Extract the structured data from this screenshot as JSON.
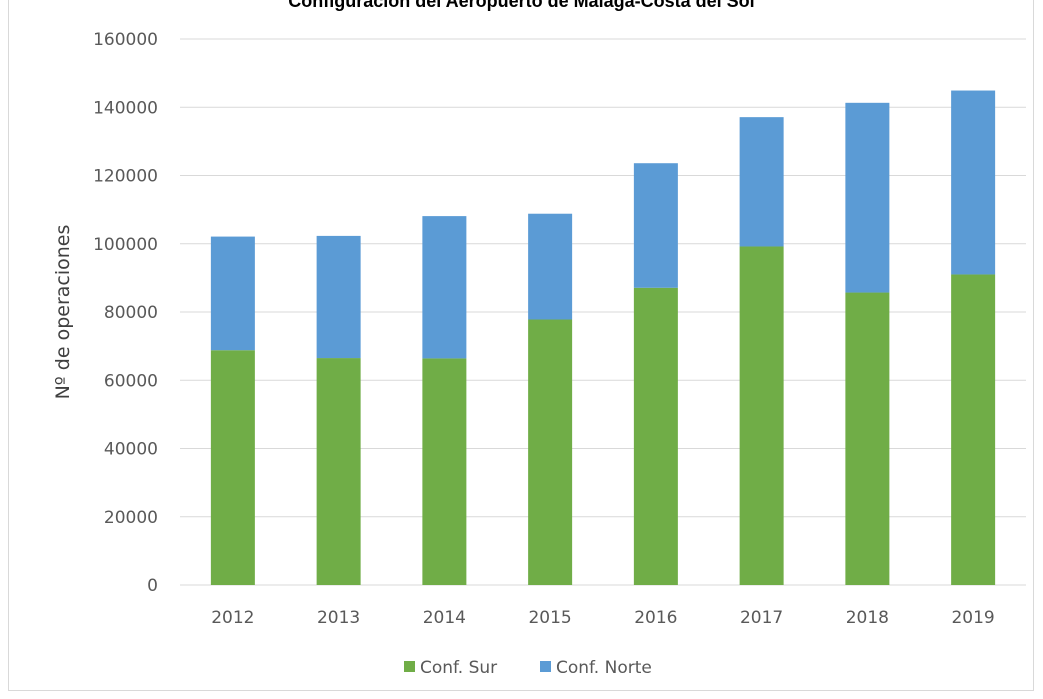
{
  "chart_data": {
    "type": "bar",
    "stacked": true,
    "title": "Configuración del Aeropuerto de Málaga-Costa del Sol",
    "xlabel": "",
    "ylabel": "Nº de operaciones",
    "categories": [
      "2012",
      "2013",
      "2014",
      "2015",
      "2016",
      "2017",
      "2018",
      "2019"
    ],
    "series": [
      {
        "name": "Conf. Sur",
        "color": "#70ad47",
        "values": [
          68800,
          66500,
          66400,
          77800,
          87100,
          99200,
          85700,
          91000
        ]
      },
      {
        "name": "Conf. Norte",
        "color": "#5b9bd5",
        "values": [
          33300,
          35800,
          41700,
          31000,
          36500,
          37900,
          55600,
          53900
        ]
      }
    ],
    "ylim": [
      0,
      160000
    ],
    "yticks": [
      "0",
      "20000",
      "40000",
      "60000",
      "80000",
      "100000",
      "120000",
      "140000",
      "160000"
    ],
    "grid": true,
    "legend_position": "bottom"
  }
}
